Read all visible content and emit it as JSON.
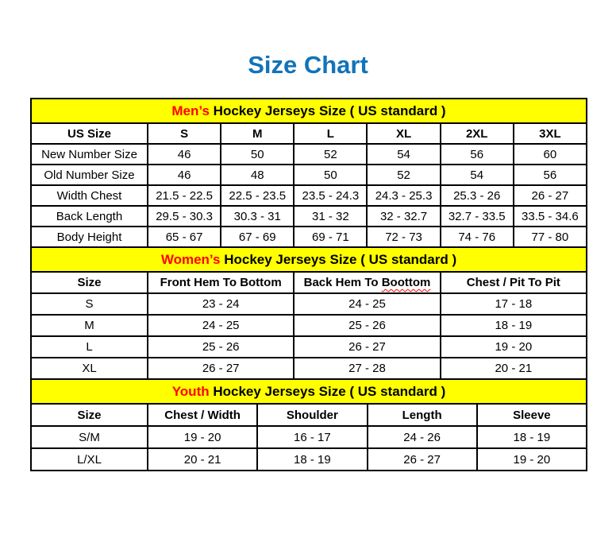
{
  "page": {
    "title": "Size Chart"
  },
  "colors": {
    "title_blue": "#1273B9",
    "band_yellow": "#FFFF00",
    "accent_red": "#FF0000",
    "border_black": "#000000"
  },
  "mens": {
    "band": {
      "highlight": "Men’s",
      "rest": "Hockey Jerseys Size ( US standard )"
    },
    "columns": [
      "US Size",
      "S",
      "M",
      "L",
      "XL",
      "2XL",
      "3XL"
    ],
    "rows": [
      {
        "label": "New Number Size",
        "values": [
          "46",
          "50",
          "52",
          "54",
          "56",
          "60"
        ]
      },
      {
        "label": "Old Number Size",
        "values": [
          "46",
          "48",
          "50",
          "52",
          "54",
          "56"
        ]
      },
      {
        "label": "Width Chest",
        "values": [
          "21.5 - 22.5",
          "22.5 - 23.5",
          "23.5 - 24.3",
          "24.3 - 25.3",
          "25.3 - 26",
          "26 - 27"
        ]
      },
      {
        "label": "Back Length",
        "values": [
          "29.5 - 30.3",
          "30.3 - 31",
          "31 - 32",
          "32 - 32.7",
          "32.7 - 33.5",
          "33.5 - 34.6"
        ]
      },
      {
        "label": "Body Height",
        "values": [
          "65 - 67",
          "67 - 69",
          "69 - 71",
          "72 - 73",
          "74 - 76",
          "77 - 80"
        ]
      }
    ]
  },
  "womens": {
    "band": {
      "highlight": "Women’s",
      "rest": "Hockey Jerseys Size ( US standard )"
    },
    "columns": [
      "Size",
      "Front Hem To Bottom",
      {
        "prefix": "Back Hem To",
        "word": "Boottom"
      },
      "Chest / Pit To Pit"
    ],
    "rows": [
      {
        "label": "S",
        "values": [
          "23 - 24",
          "24 - 25",
          "17 - 18"
        ]
      },
      {
        "label": "M",
        "values": [
          "24 - 25",
          "25 - 26",
          "18 - 19"
        ]
      },
      {
        "label": "L",
        "values": [
          "25 - 26",
          "26 - 27",
          "19 - 20"
        ]
      },
      {
        "label": "XL",
        "values": [
          "26 - 27",
          "27 - 28",
          "20 - 21"
        ]
      }
    ]
  },
  "youth": {
    "band": {
      "highlight": "Youth",
      "rest": "Hockey Jerseys Size ( US standard )"
    },
    "columns": [
      "Size",
      "Chest / Width",
      "Shoulder",
      "Length",
      "Sleeve"
    ],
    "rows": [
      {
        "label": "S/M",
        "values": [
          "19 - 20",
          "16 - 17",
          "24 - 26",
          "18 - 19"
        ]
      },
      {
        "label": "L/XL",
        "values": [
          "20 - 21",
          "18 - 19",
          "26 - 27",
          "19 - 20"
        ]
      }
    ]
  }
}
